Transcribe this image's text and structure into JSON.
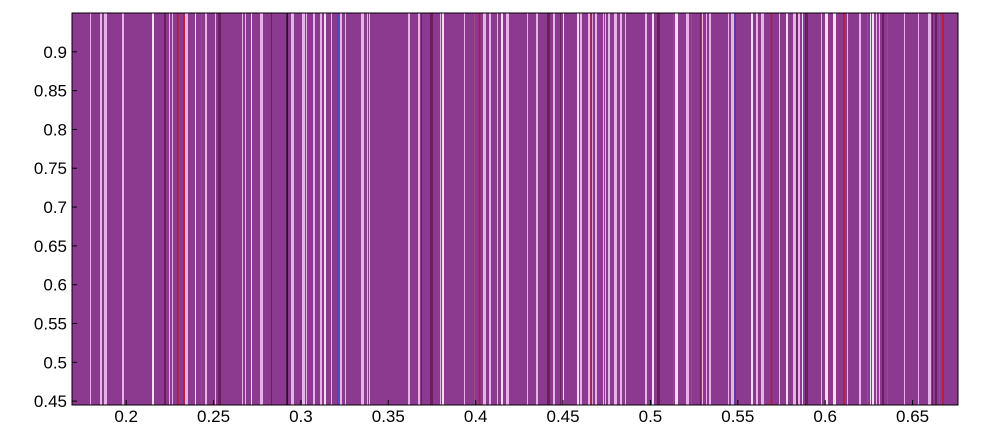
{
  "chart_data": {
    "type": "heatmap",
    "title": "",
    "xlabel": "",
    "ylabel": "",
    "xlim": [
      0.169,
      0.676
    ],
    "ylim": [
      0.445,
      0.95
    ],
    "x_ticks": [
      "0.2",
      "0.25",
      "0.3",
      "0.35",
      "0.4",
      "0.45",
      "0.5",
      "0.55",
      "0.6",
      "0.65"
    ],
    "y_ticks": [
      "0.9",
      "0.85",
      "0.8",
      "0.75",
      "0.7",
      "0.65",
      "0.6",
      "0.55",
      "0.5",
      "0.45"
    ],
    "grid": false,
    "legend": "none",
    "colors": {
      "dominant": "#8b3a8f",
      "light": "#e6b3e6",
      "dark": "#6b1f5a",
      "red": "#c0182a",
      "blue": "#3a3fc8"
    },
    "accent_lines": [
      {
        "x": 0.2295,
        "color": "#c0182a"
      },
      {
        "x": 0.2331,
        "color": "#c0182a"
      },
      {
        "x": 0.2921,
        "color": "#1a0a1a"
      },
      {
        "x": 0.3213,
        "color": "#3a3fc8"
      },
      {
        "x": 0.4022,
        "color": "#c0182a"
      },
      {
        "x": 0.4662,
        "color": "#c0182a"
      },
      {
        "x": 0.5485,
        "color": "#3a3fc8"
      },
      {
        "x": 0.5693,
        "color": "#c0182a"
      },
      {
        "x": 0.5839,
        "color": "#6b1f5a"
      },
      {
        "x": 0.6107,
        "color": "#c0182a"
      },
      {
        "x": 0.6674,
        "color": "#c0182a"
      }
    ],
    "stripe_seed": 7
  }
}
